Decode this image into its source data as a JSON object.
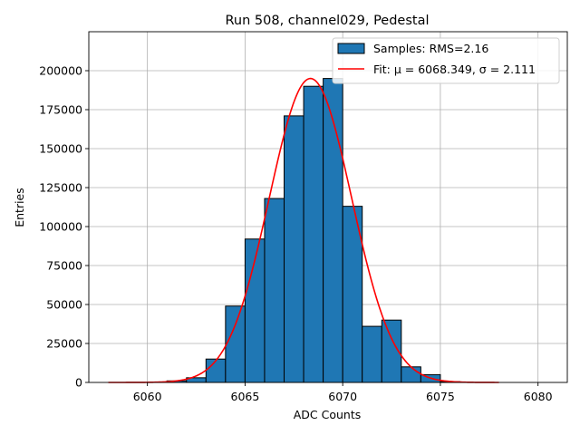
{
  "chart_data": {
    "type": "bar",
    "title": "Run 508, channel029, Pedestal",
    "xlabel": "ADC Counts",
    "ylabel": "Entries",
    "xlim": [
      6057,
      6081.5
    ],
    "ylim": [
      0,
      225000
    ],
    "grid": true,
    "legend_position": "top-right",
    "x_ticks": [
      6060,
      6065,
      6070,
      6075,
      6080
    ],
    "y_ticks": [
      0,
      25000,
      50000,
      75000,
      100000,
      125000,
      150000,
      175000,
      200000
    ],
    "bin_width": 1,
    "bins": [
      {
        "x": 6061,
        "value": 1000
      },
      {
        "x": 6062,
        "value": 3000
      },
      {
        "x": 6063,
        "value": 15000
      },
      {
        "x": 6064,
        "value": 49000
      },
      {
        "x": 6065,
        "value": 92000
      },
      {
        "x": 6066,
        "value": 118000
      },
      {
        "x": 6067,
        "value": 171000
      },
      {
        "x": 6068,
        "value": 190000
      },
      {
        "x": 6069,
        "value": 195000
      },
      {
        "x": 6070,
        "value": 113000
      },
      {
        "x": 6071,
        "value": 36000
      },
      {
        "x": 6072,
        "value": 40000
      },
      {
        "x": 6073,
        "value": 10000
      },
      {
        "x": 6074,
        "value": 5000
      },
      {
        "x": 6075,
        "value": 500
      }
    ],
    "fit": {
      "mu": 6068.349,
      "sigma": 2.111,
      "amplitude": 195000,
      "x_range": [
        6058,
        6078
      ]
    },
    "legend": [
      {
        "label": "Samples: RMS=2.16",
        "kind": "patch",
        "color": "#1f77b4"
      },
      {
        "label": "Fit: μ = 6068.349, σ = 2.111",
        "kind": "line",
        "color": "#ff0000"
      }
    ],
    "colors": {
      "bar": "#1f77b4",
      "bar_edge": "#000000",
      "fit": "#ff0000",
      "grid": "#b0b0b0"
    }
  }
}
